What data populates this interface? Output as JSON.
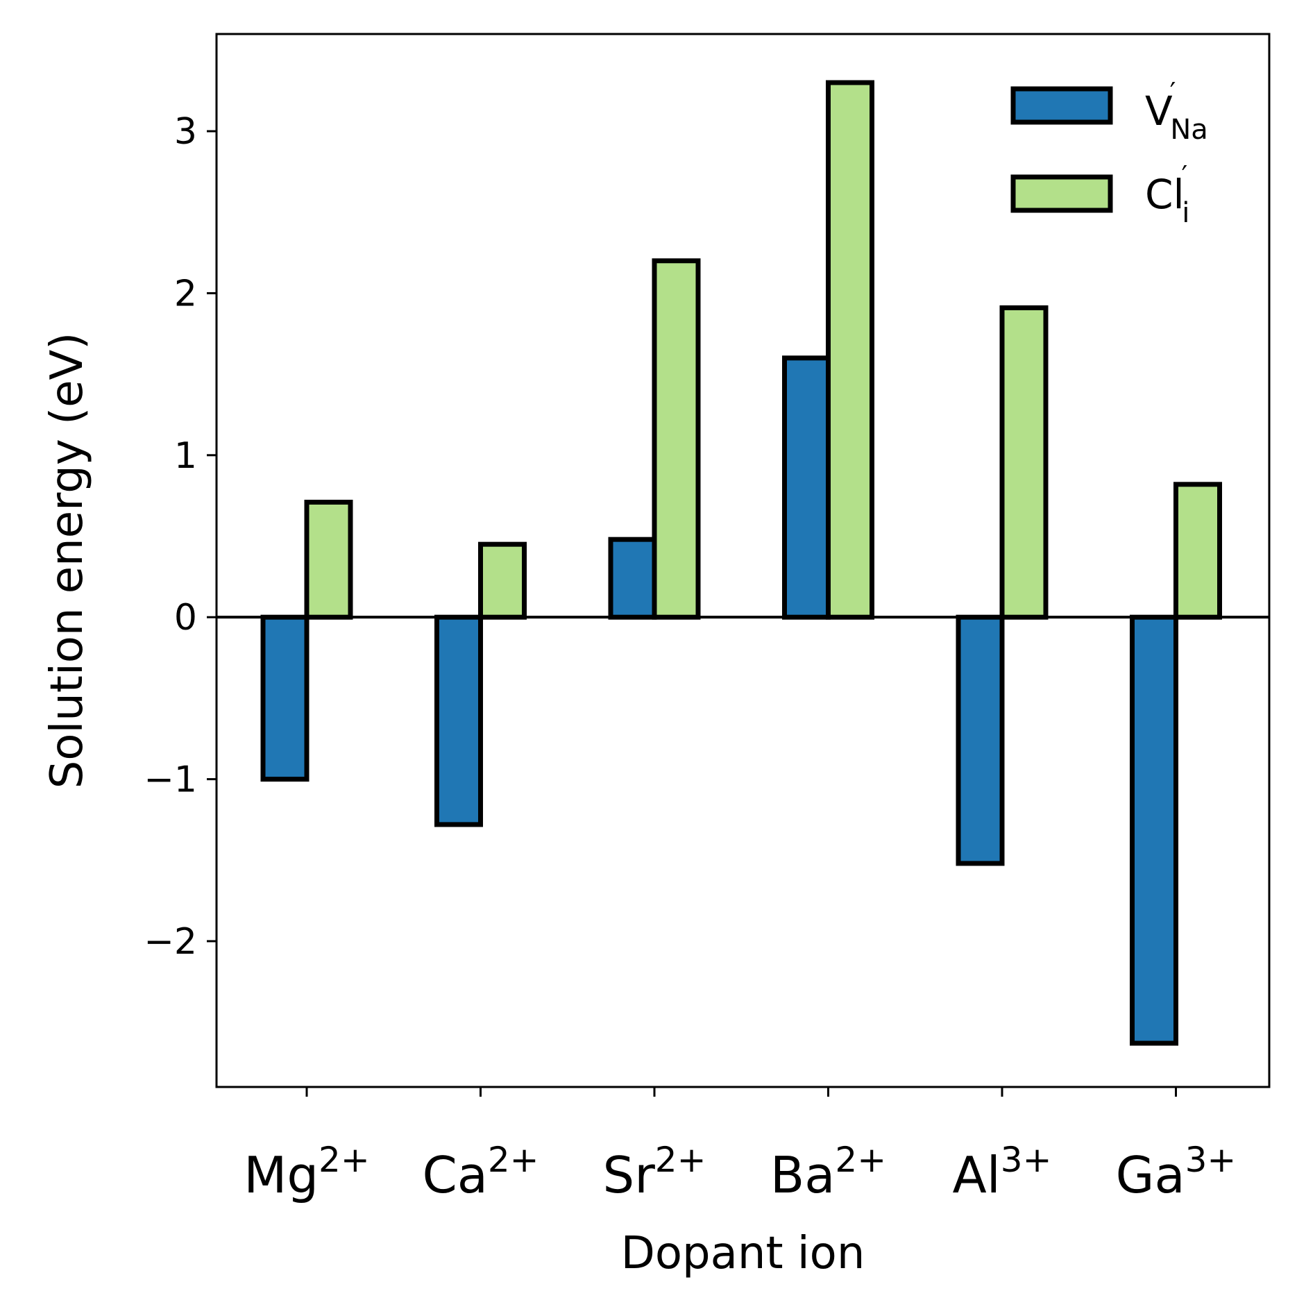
{
  "chart_data": {
    "type": "bar",
    "title": "",
    "xlabel": "Dopant ion",
    "ylabel": "Solution energy (eV)",
    "categories": [
      {
        "base": "Mg",
        "sup": "2+"
      },
      {
        "base": "Ca",
        "sup": "2+"
      },
      {
        "base": "Sr",
        "sup": "2+"
      },
      {
        "base": "Ba",
        "sup": "2+"
      },
      {
        "base": "Al",
        "sup": "3+"
      },
      {
        "base": "Ga",
        "sup": "3+"
      }
    ],
    "series": [
      {
        "name": "V",
        "name_sup": "′",
        "name_sub": "Na",
        "color": "#2077b4",
        "values": [
          -1.0,
          -1.28,
          0.48,
          1.6,
          -1.52,
          -2.63
        ]
      },
      {
        "name": "Cl",
        "name_sup": "′",
        "name_sub": "i",
        "color": "#b3e08a",
        "values": [
          0.71,
          0.45,
          2.2,
          3.3,
          1.91,
          0.82
        ]
      }
    ],
    "ylim": [
      -2.9,
      3.6
    ],
    "yticks": [
      -2,
      -1,
      0,
      1,
      2,
      3
    ],
    "ytick_labels": [
      "−2",
      "−1",
      "0",
      "1",
      "2",
      "3"
    ],
    "zero_line": true,
    "grid": false,
    "legend_position": "top-right",
    "edge_color": "#000000"
  }
}
